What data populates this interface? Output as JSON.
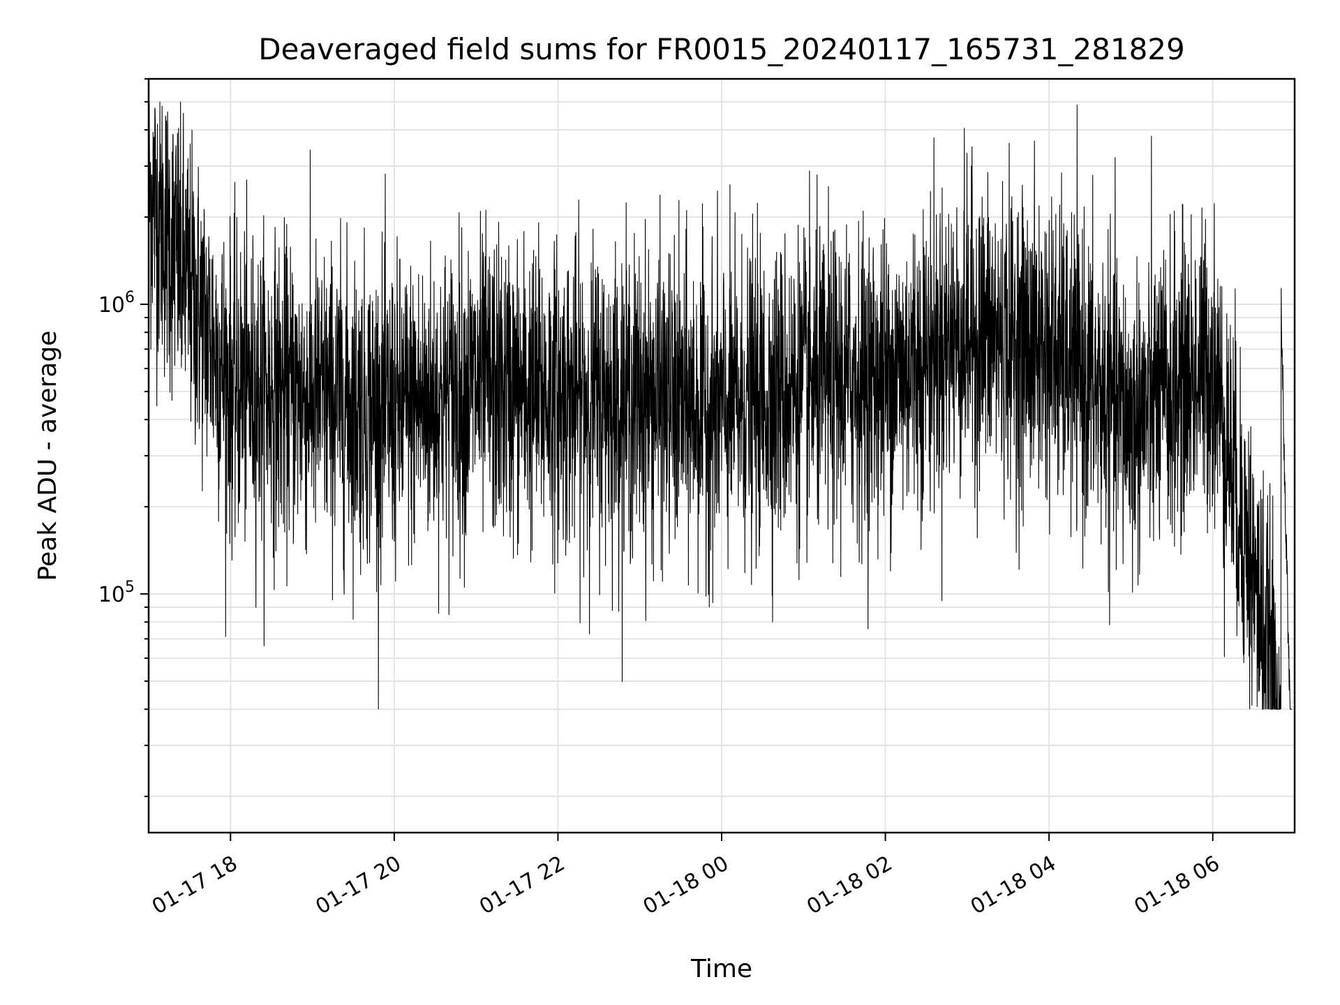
{
  "chart_data": {
    "type": "line",
    "title": "Deaveraged field sums for FR0015_20240117_165731_281829",
    "xlabel": "Time",
    "ylabel": "Peak ADU - average",
    "y_scale": "log",
    "xlim": [
      "2024-01-17 17:00",
      "2024-01-18 07:00"
    ],
    "ylim": [
      15000,
      6000000
    ],
    "grid": true,
    "legend": "none",
    "line_color": "#000000",
    "grid_color": "#e3e3e3",
    "x_tick_labels": [
      "01-17 18",
      "01-17 20",
      "01-17 22",
      "01-18 00",
      "01-18 02",
      "01-18 04",
      "01-18 06"
    ],
    "y_tick_labels": [
      {
        "base": "10",
        "exp": "5",
        "value": 100000
      },
      {
        "base": "10",
        "exp": "6",
        "value": 1000000
      }
    ],
    "series": [
      {
        "x": [
          "2024-01-17 17:00",
          "2024-01-17 18:00",
          "2024-01-17 19:00",
          "2024-01-17 20:00",
          "2024-01-17 21:00",
          "2024-01-17 22:00",
          "2024-01-17 23:00",
          "2024-01-18 00:00",
          "2024-01-18 01:00",
          "2024-01-18 02:00",
          "2024-01-18 03:00",
          "2024-01-18 04:00",
          "2024-01-18 05:00",
          "2024-01-18 06:00",
          "2024-01-18 07:00"
        ],
        "y": [
          2500000,
          520000,
          480000,
          420000,
          520000,
          480000,
          470000,
          430000,
          520000,
          560000,
          800000,
          700000,
          400000,
          620000,
          20000
        ]
      }
    ]
  }
}
